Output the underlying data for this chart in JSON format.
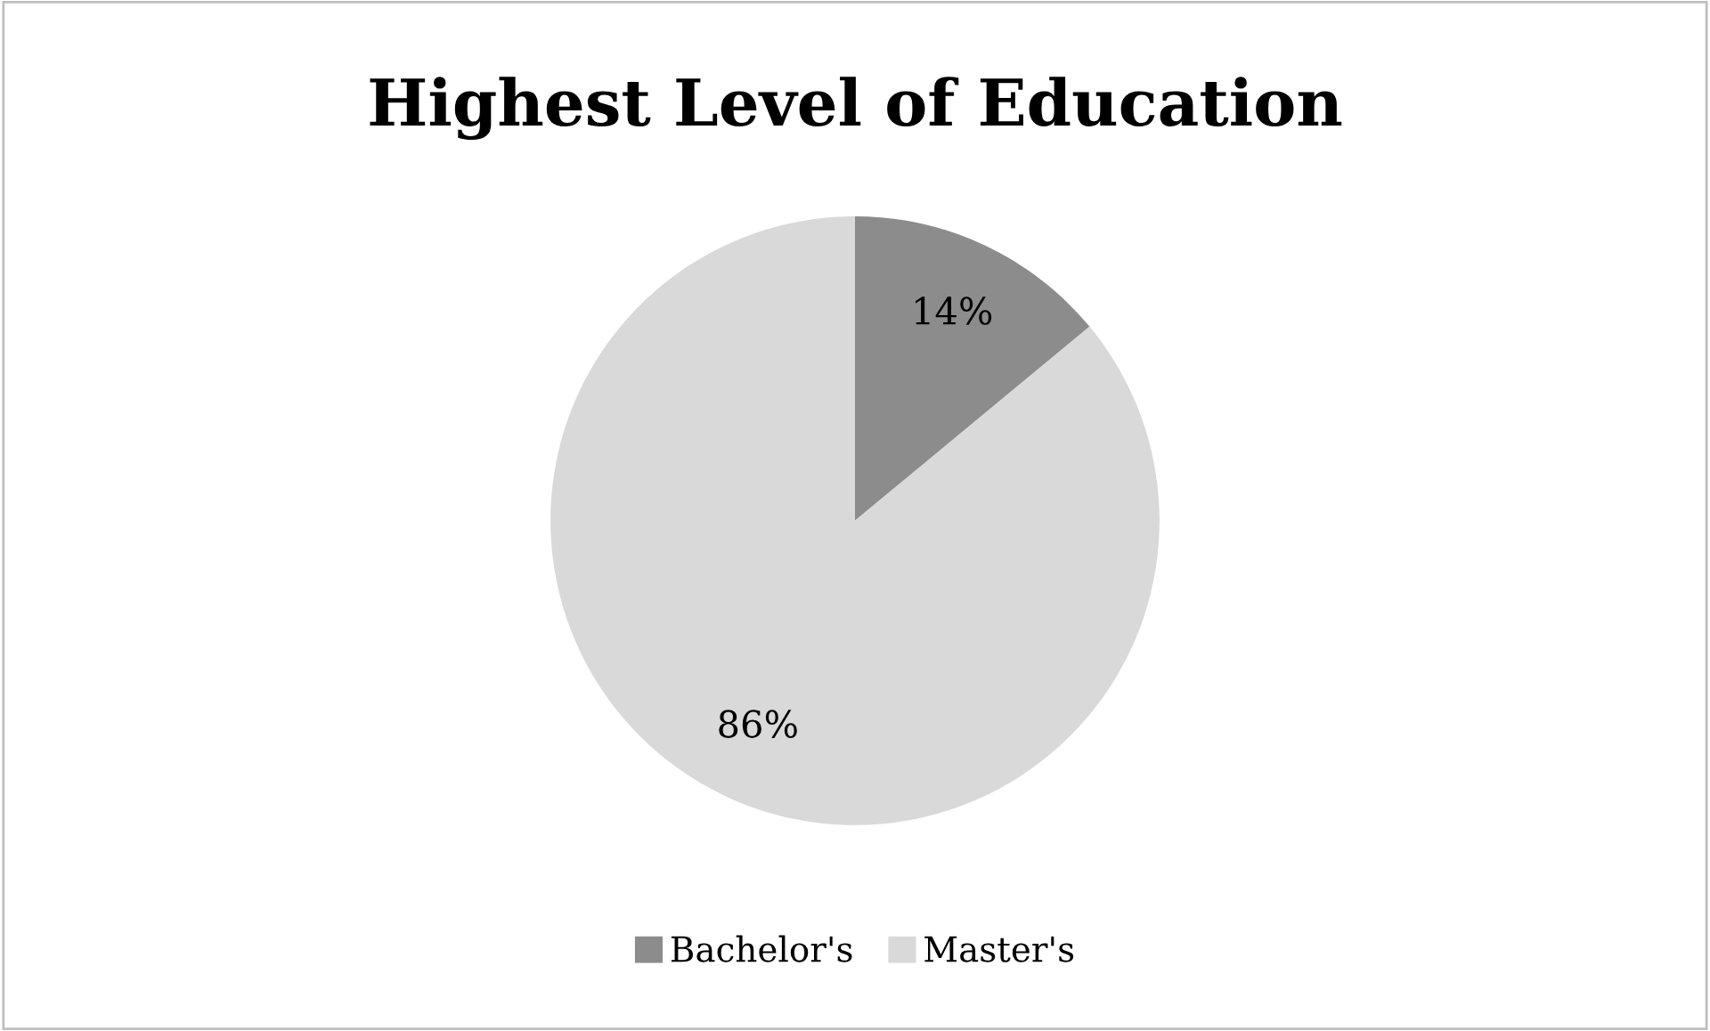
{
  "chart_data": {
    "type": "pie",
    "title": "Highest Level of Education",
    "categories": [
      "Bachelor's",
      "Master's"
    ],
    "values": [
      14,
      86
    ],
    "colors": [
      "#8c8c8c",
      "#d9d9d9"
    ],
    "value_labels": [
      "14%",
      "86%"
    ],
    "legend": "bottom"
  }
}
